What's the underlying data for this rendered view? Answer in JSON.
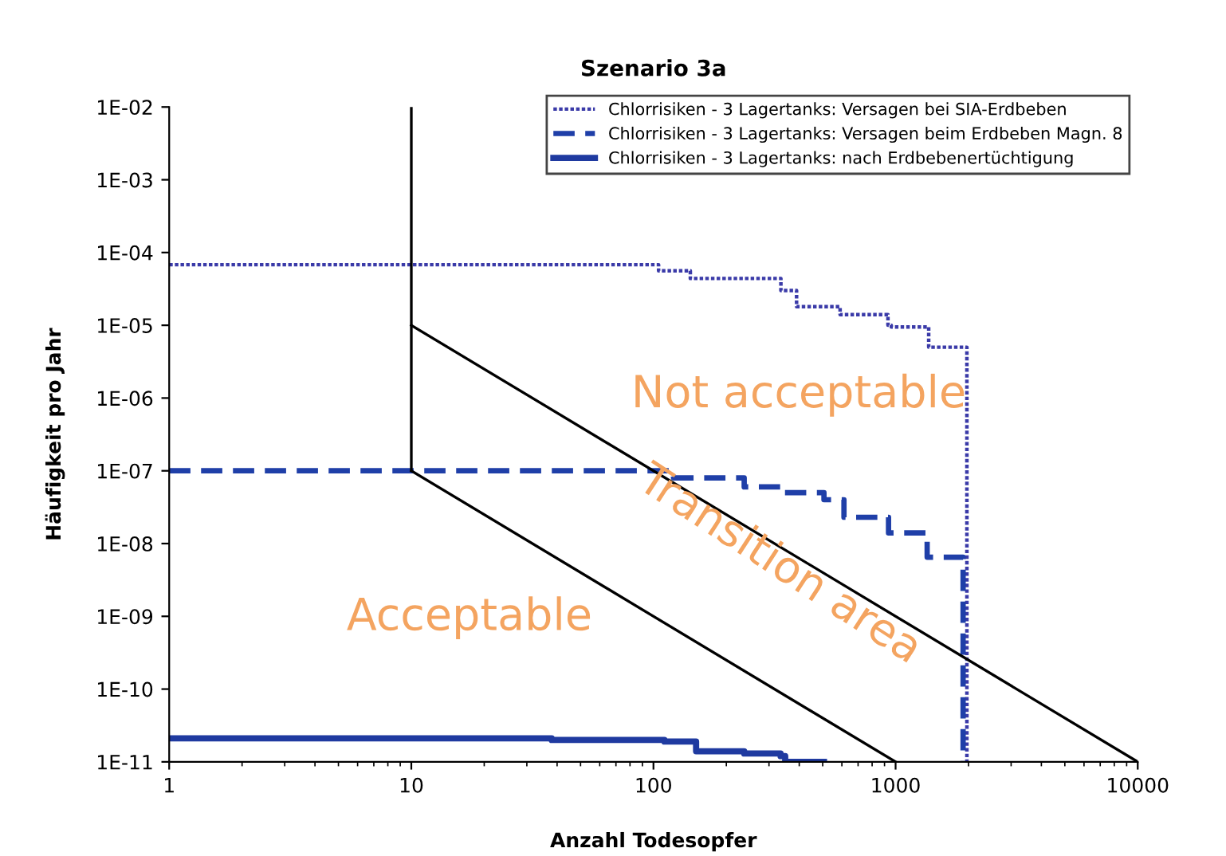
{
  "chart_data": {
    "type": "step",
    "title": "Szenario 3a",
    "xlabel": "Anzahl Todesopfer",
    "ylabel": "Häufigkeit pro Jahr",
    "log": "xy",
    "xlim": [
      1,
      10000
    ],
    "xticks": [
      1,
      10,
      100,
      1000,
      10000
    ],
    "ylim": [
      1e-11,
      0.01
    ],
    "yticks": [
      {
        "value": 1e-11,
        "label": "1E-11"
      },
      {
        "value": 1e-10,
        "label": "1E-10"
      },
      {
        "value": 1e-09,
        "label": "1E-09"
      },
      {
        "value": 1e-08,
        "label": "1E-08"
      },
      {
        "value": 1e-07,
        "label": "1E-07"
      },
      {
        "value": 1e-06,
        "label": "1E-06"
      },
      {
        "value": 1e-05,
        "label": "1E-05"
      },
      {
        "value": 0.0001,
        "label": "1E-04"
      },
      {
        "value": 0.001,
        "label": "1E-03"
      },
      {
        "value": 0.01,
        "label": "1E-02"
      }
    ],
    "grid": false,
    "legend": "top right",
    "series": [
      {
        "name": "Chlorrisiken - 3 Lagertanks: Versagen bei SIA-Erdbeben",
        "color": "#3a3aa8",
        "line_style": "dotted",
        "x": [
          1,
          105,
          142,
          336,
          390,
          590,
          930,
          960,
          1370,
          1970
        ],
        "values": [
          6.8e-05,
          5.6e-05,
          4.4e-05,
          3e-05,
          1.8e-05,
          1.4e-05,
          1e-05,
          9.5e-06,
          5e-06,
          1e-11
        ]
      },
      {
        "name": "Chlorrisiken - 3 Lagertanks: Versagen beim Erdbeben Magn. 8",
        "color": "#1f3fa8",
        "line_style": "dashed",
        "x": [
          1,
          121,
          237,
          335,
          506,
          612,
          935,
          1350,
          1900
        ],
        "values": [
          1e-07,
          8e-08,
          6e-08,
          5e-08,
          4e-08,
          2.3e-08,
          1.4e-08,
          6.5e-09,
          1e-11
        ]
      },
      {
        "name": "Chlorrisiken - 3 Lagertanks: nach Erdbebenertüchtigung",
        "color": "#1f3aa0",
        "line_style": "solid",
        "x": [
          1,
          38,
          111,
          150,
          237,
          335,
          350,
          506
        ],
        "values": [
          2.1e-11,
          2e-11,
          1.9e-11,
          1.4e-11,
          1.3e-11,
          1.2e-11,
          1e-11,
          1e-11
        ]
      },
      {
        "type": "line",
        "color": "#000000",
        "line_style": "solid",
        "x": [
          10,
          10
        ],
        "values": [
          1e-07,
          0.01
        ]
      },
      {
        "type": "line",
        "color": "#000000",
        "line_style": "solid",
        "x": [
          10,
          10000
        ],
        "values": [
          1e-05,
          1e-11
        ]
      },
      {
        "type": "line",
        "color": "#000000",
        "line_style": "solid",
        "x": [
          10,
          1000
        ],
        "values": [
          1e-07,
          1e-11
        ]
      }
    ],
    "annotations": [
      "Not acceptable",
      "Transition area",
      "Acceptable"
    ]
  }
}
